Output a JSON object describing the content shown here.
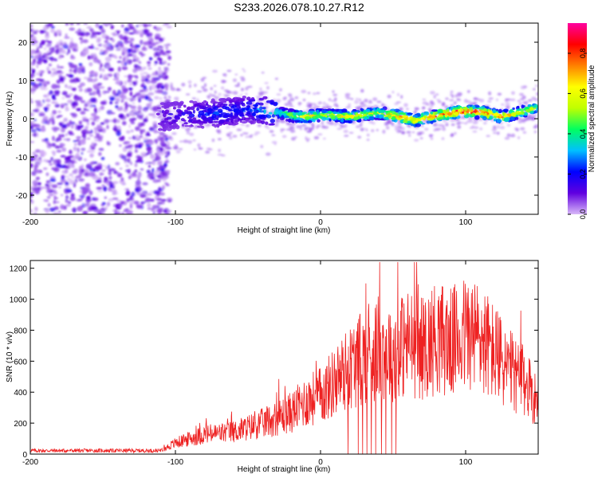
{
  "title": "S233.2026.078.10.27.R12",
  "chart_data": [
    {
      "type": "heatmap",
      "name": "spectrogram",
      "xlabel": "Height of straight line (km)",
      "ylabel": "Frequency (Hz)",
      "xlim": [
        -200,
        150
      ],
      "ylim": [
        -25,
        25
      ],
      "xticks": [
        -200,
        -100,
        0,
        100
      ],
      "yticks": [
        -20,
        -10,
        0,
        10,
        20
      ],
      "colorbar": {
        "label": "Normalized spectral amplitude",
        "range": [
          0,
          0.95
        ],
        "ticks": [
          0.0,
          0.2,
          0.4,
          0.6,
          0.8
        ],
        "tick_labels": [
          "0.0",
          "0.2",
          "0.4",
          "0.6",
          "0.8"
        ],
        "colormap": [
          "#d8b8f8",
          "#6000e0",
          "#0000ff",
          "#00c0ff",
          "#00ff60",
          "#c0ff00",
          "#ffff00",
          "#ff8000",
          "#ff0000",
          "#ff00a0"
        ]
      },
      "noise_region": {
        "x_from": -200,
        "x_to": -110,
        "freq_range": [
          -25,
          25
        ],
        "amplitude": 0.1
      },
      "signal_ridge": [
        {
          "x": -110,
          "f": 0.5,
          "amp": 0.15
        },
        {
          "x": -90,
          "f": 1.0,
          "amp": 0.2
        },
        {
          "x": -70,
          "f": 1.5,
          "amp": 0.25
        },
        {
          "x": -50,
          "f": 2.5,
          "amp": 0.25
        },
        {
          "x": -35,
          "f": 2.0,
          "amp": 0.35
        },
        {
          "x": -20,
          "f": 0.8,
          "amp": 0.55
        },
        {
          "x": -10,
          "f": 0.5,
          "amp": 0.7
        },
        {
          "x": 0,
          "f": 1.0,
          "amp": 0.6
        },
        {
          "x": 20,
          "f": 0.6,
          "amp": 0.65
        },
        {
          "x": 40,
          "f": 1.5,
          "amp": 0.6
        },
        {
          "x": 55,
          "f": 0.5,
          "amp": 0.85
        },
        {
          "x": 65,
          "f": -0.5,
          "amp": 0.75
        },
        {
          "x": 80,
          "f": 0.8,
          "amp": 0.8
        },
        {
          "x": 95,
          "f": 1.8,
          "amp": 0.85
        },
        {
          "x": 110,
          "f": 1.8,
          "amp": 0.9
        },
        {
          "x": 125,
          "f": 0.5,
          "amp": 0.75
        },
        {
          "x": 140,
          "f": 2.0,
          "amp": 0.6
        },
        {
          "x": 150,
          "f": 3.0,
          "amp": 0.5
        }
      ]
    },
    {
      "type": "line",
      "name": "snr",
      "xlabel": "Height of straight line (km)",
      "ylabel": "SNR (10 * v/v)",
      "xlim": [
        -200,
        150
      ],
      "ylim": [
        0,
        1250
      ],
      "xticks": [
        -200,
        -100,
        0,
        100
      ],
      "yticks": [
        0,
        200,
        400,
        600,
        800,
        1000,
        1200
      ],
      "color": "#ee2222",
      "series": [
        {
          "name": "SNR",
          "x": [
            -200,
            -110,
            -100,
            -80,
            -60,
            -40,
            -20,
            -10,
            0,
            10,
            20,
            30,
            40,
            50,
            60,
            70,
            80,
            90,
            100,
            110,
            120,
            130,
            140,
            150
          ],
          "values": [
            25,
            25,
            80,
            140,
            160,
            220,
            300,
            380,
            420,
            520,
            620,
            700,
            760,
            740,
            800,
            760,
            840,
            800,
            860,
            840,
            720,
            600,
            520,
            380
          ]
        }
      ],
      "dropouts_x": [
        19,
        26,
        29,
        32,
        35,
        38,
        42,
        45,
        49,
        52
      ]
    }
  ]
}
